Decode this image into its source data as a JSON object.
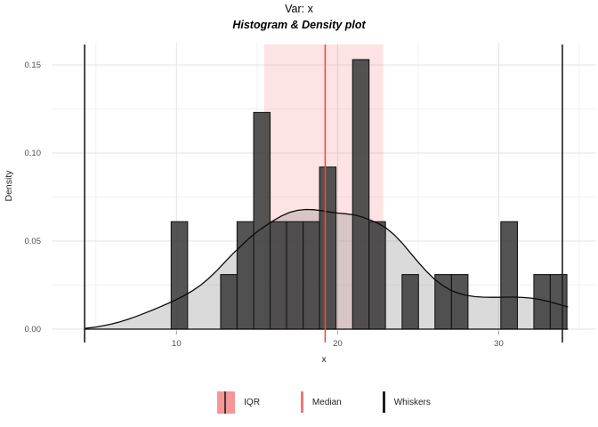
{
  "title": "Var: x",
  "subtitle": "Histogram & Density plot",
  "chart_data": {
    "type": "histogram+density",
    "xlabel": "x",
    "ylabel": "Density",
    "x_ticks": [
      10,
      20,
      30
    ],
    "x_minor_ticks": [
      5,
      15,
      25,
      35
    ],
    "y_ticks": [
      {
        "value": 0.0,
        "label": "0.00"
      },
      {
        "value": 0.05,
        "label": "0.05"
      },
      {
        "value": 0.1,
        "label": "0.10"
      },
      {
        "value": 0.15,
        "label": "0.15"
      }
    ],
    "y_minor_ticks": [
      0.025,
      0.075,
      0.125
    ],
    "x_domain": [
      2.25,
      36.05
    ],
    "y_domain": [
      0,
      0.1626
    ],
    "grid": true,
    "bins": [
      {
        "x0": 9.67,
        "x1": 10.69,
        "density": 0.061
      },
      {
        "x0": 12.74,
        "x1": 13.76,
        "density": 0.031
      },
      {
        "x0": 13.76,
        "x1": 14.79,
        "density": 0.061
      },
      {
        "x0": 14.79,
        "x1": 15.81,
        "density": 0.123
      },
      {
        "x0": 15.81,
        "x1": 16.83,
        "density": 0.061
      },
      {
        "x0": 16.83,
        "x1": 17.86,
        "density": 0.061
      },
      {
        "x0": 17.86,
        "x1": 18.88,
        "density": 0.061
      },
      {
        "x0": 18.88,
        "x1": 19.9,
        "density": 0.092
      },
      {
        "x0": 20.93,
        "x1": 21.95,
        "density": 0.153
      },
      {
        "x0": 21.95,
        "x1": 22.97,
        "density": 0.061
      },
      {
        "x0": 24.0,
        "x1": 25.02,
        "density": 0.031
      },
      {
        "x0": 26.04,
        "x1": 27.07,
        "density": 0.031
      },
      {
        "x0": 27.07,
        "x1": 28.09,
        "density": 0.031
      },
      {
        "x0": 30.13,
        "x1": 31.16,
        "density": 0.061
      },
      {
        "x0": 32.18,
        "x1": 33.2,
        "density": 0.031
      },
      {
        "x0": 33.2,
        "x1": 34.23,
        "density": 0.031
      }
    ],
    "density_curve": [
      [
        4.3,
        0.0004
      ],
      [
        5,
        0.0012
      ],
      [
        5.5,
        0.002
      ],
      [
        6,
        0.003
      ],
      [
        6.5,
        0.0042
      ],
      [
        7,
        0.0056
      ],
      [
        7.5,
        0.0072
      ],
      [
        8,
        0.009
      ],
      [
        8.5,
        0.0108
      ],
      [
        9,
        0.0127
      ],
      [
        9.5,
        0.0147
      ],
      [
        10,
        0.0168
      ],
      [
        10.5,
        0.0192
      ],
      [
        11,
        0.0218
      ],
      [
        11.5,
        0.025
      ],
      [
        12,
        0.0288
      ],
      [
        12.5,
        0.0332
      ],
      [
        13,
        0.038
      ],
      [
        13.5,
        0.0428
      ],
      [
        14,
        0.0472
      ],
      [
        14.5,
        0.0515
      ],
      [
        15,
        0.0553
      ],
      [
        15.5,
        0.0585
      ],
      [
        16,
        0.0615
      ],
      [
        16.5,
        0.0642
      ],
      [
        17,
        0.0662
      ],
      [
        17.5,
        0.0674
      ],
      [
        18,
        0.0679
      ],
      [
        18.5,
        0.0678
      ],
      [
        19,
        0.0672
      ],
      [
        19.5,
        0.0665
      ],
      [
        20,
        0.0659
      ],
      [
        20.5,
        0.0655
      ],
      [
        21,
        0.0649
      ],
      [
        21.5,
        0.0638
      ],
      [
        22,
        0.062
      ],
      [
        22.5,
        0.0601
      ],
      [
        23,
        0.0575
      ],
      [
        23.5,
        0.0537
      ],
      [
        24,
        0.049
      ],
      [
        24.5,
        0.0435
      ],
      [
        25,
        0.038
      ],
      [
        25.5,
        0.0329
      ],
      [
        26,
        0.0285
      ],
      [
        26.5,
        0.0249
      ],
      [
        27,
        0.0222
      ],
      [
        27.5,
        0.0204
      ],
      [
        28,
        0.0192
      ],
      [
        28.5,
        0.0185
      ],
      [
        29,
        0.0182
      ],
      [
        29.5,
        0.0181
      ],
      [
        30,
        0.0181
      ],
      [
        30.5,
        0.0182
      ],
      [
        31,
        0.0182
      ],
      [
        31.5,
        0.018
      ],
      [
        32,
        0.0176
      ],
      [
        32.5,
        0.0169
      ],
      [
        33,
        0.0159
      ],
      [
        33.5,
        0.0147
      ],
      [
        34,
        0.0134
      ],
      [
        34.3,
        0.0126
      ]
    ],
    "stats": {
      "q1": 15.44,
      "q3": 22.83,
      "median": 19.23,
      "whisker_low": 4.3,
      "whisker_high": 33.95
    },
    "colors": {
      "iqr_fill": "rgba(247,106,106,0.19)",
      "median_line": "#ed4a42",
      "whisker_line": "#1f1f1f",
      "bar_fill": "rgba(63,63,63,0.89)",
      "bar_stroke": "#161616",
      "density_fill": "rgba(118,118,118,0.27)",
      "density_line": "#0a0a0a",
      "grid_major": "#e3e3e3",
      "grid_minor": "#f1f1f1",
      "tick_mark": "#9a9a9a",
      "tick_label": "#4d4d4d",
      "axis_title": "#1f1f1f",
      "iqr_key_fill": "#f69696",
      "iqr_key_line": "#3c3c3c",
      "median_key": "#f07878",
      "whisker_key": "#1f1f1f"
    }
  },
  "legend": {
    "items": [
      {
        "label": "IQR"
      },
      {
        "label": "Median"
      },
      {
        "label": "Whiskers"
      }
    ]
  }
}
